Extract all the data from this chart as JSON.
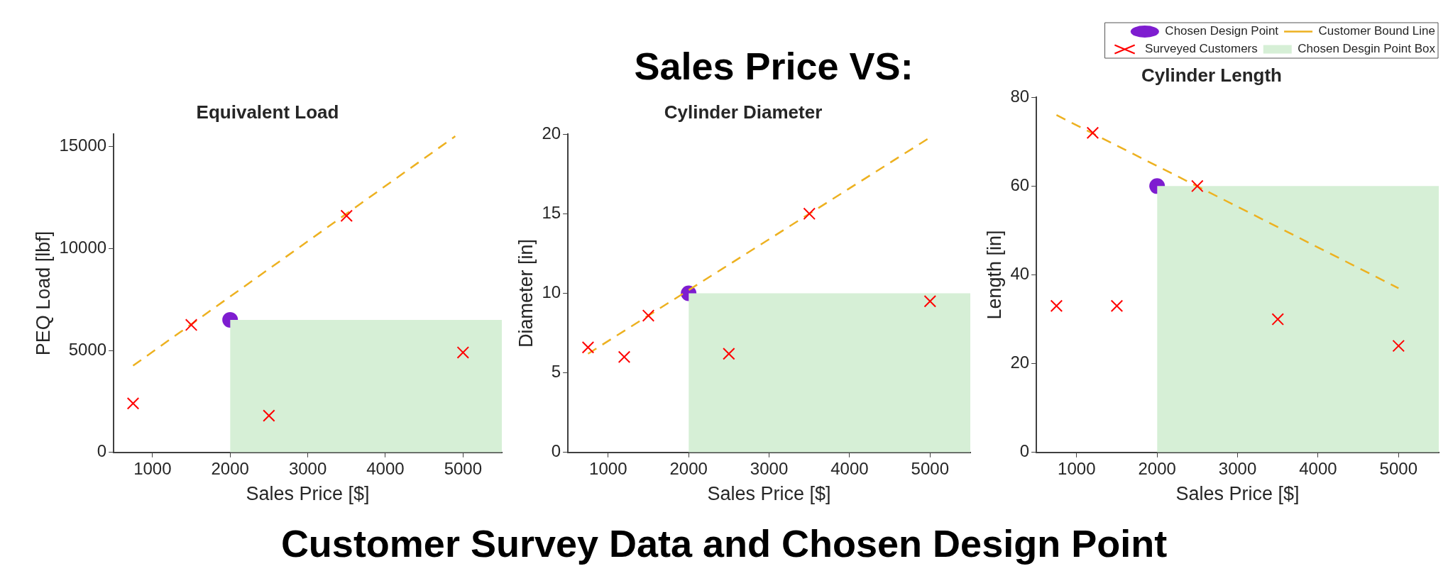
{
  "chart_data": [
    {
      "type": "other",
      "title": "Sales Price VS:",
      "annotations": [
        "Customer Survey Data and Chosen Design Point"
      ]
    },
    {
      "type": "scatter",
      "title": "Equivalent Load",
      "xlabel": "Sales Price [$]",
      "ylabel": "PEQ Load [lbf]",
      "xlim": [
        500,
        5500
      ],
      "xticks": [
        1000,
        2000,
        3000,
        4000,
        5000
      ],
      "ylim": [
        0,
        15600
      ],
      "yticks": [
        0,
        5000,
        10000,
        15000
      ],
      "grid": false,
      "legend": false,
      "series": [
        {
          "type": "scatter",
          "marker": "circle",
          "color": "#7e1dd0",
          "x": [
            2000
          ],
          "values": [
            6500
          ]
        },
        {
          "type": "line",
          "line_style": "dashed",
          "color": "#edb120",
          "x": [
            750,
            4900
          ],
          "values": [
            4250,
            15500
          ]
        },
        {
          "type": "scatter",
          "marker": "cross",
          "color": "#ff0000",
          "x": [
            750,
            1500,
            2500,
            3500,
            5000
          ],
          "values": [
            2400,
            6250,
            1800,
            11600,
            4900
          ]
        },
        {
          "type": "area",
          "color": "#d6efd6",
          "x": [
            2000,
            5500
          ],
          "values": [
            6500,
            6500
          ]
        }
      ]
    },
    {
      "type": "scatter",
      "title": "Cylinder Diameter",
      "xlabel": "Sales Price [$]",
      "ylabel": "Diameter [in]",
      "xlim": [
        500,
        5500
      ],
      "xticks": [
        1000,
        2000,
        3000,
        4000,
        5000
      ],
      "ylim": [
        0,
        20
      ],
      "yticks": [
        0,
        5,
        10,
        15,
        20
      ],
      "grid": false,
      "legend": false,
      "series": [
        {
          "type": "scatter",
          "marker": "circle",
          "color": "#7e1dd0",
          "x": [
            2000
          ],
          "values": [
            10
          ]
        },
        {
          "type": "line",
          "line_style": "dashed",
          "color": "#edb120",
          "x": [
            750,
            5000
          ],
          "values": [
            6.2,
            19.8
          ]
        },
        {
          "type": "scatter",
          "marker": "cross",
          "color": "#ff0000",
          "x": [
            750,
            1200,
            1500,
            2500,
            3500,
            5000
          ],
          "values": [
            6.6,
            6,
            8.6,
            6.2,
            15,
            9.5
          ]
        },
        {
          "type": "area",
          "color": "#d6efd6",
          "x": [
            2000,
            5500
          ],
          "values": [
            10,
            10
          ]
        }
      ]
    },
    {
      "type": "scatter",
      "title": "Cylinder Length",
      "xlabel": "Sales Price [$]",
      "ylabel": "Length [in]",
      "xlim": [
        500,
        5500
      ],
      "xticks": [
        1000,
        2000,
        3000,
        4000,
        5000
      ],
      "ylim": [
        0,
        80
      ],
      "yticks": [
        0,
        20,
        40,
        60,
        80
      ],
      "grid": false,
      "legend": "top right",
      "series": [
        {
          "name": "Chosen Design Point",
          "type": "scatter",
          "marker": "circle",
          "color": "#7e1dd0",
          "x": [
            2000
          ],
          "values": [
            60
          ]
        },
        {
          "name": "Customer Bound Line",
          "type": "line",
          "line_style": "dashed",
          "color": "#edb120",
          "x": [
            750,
            5000
          ],
          "values": [
            76,
            37
          ]
        },
        {
          "name": "Surveyed Customers",
          "type": "scatter",
          "marker": "cross",
          "color": "#ff0000",
          "x": [
            750,
            1200,
            1500,
            2500,
            3500,
            5000
          ],
          "values": [
            33,
            72,
            33,
            60,
            30,
            24
          ]
        },
        {
          "name": "Chosen Desgin Point Box",
          "type": "area",
          "color": "#d6efd6",
          "x": [
            2000,
            5500
          ],
          "values": [
            60,
            60
          ]
        }
      ]
    }
  ]
}
